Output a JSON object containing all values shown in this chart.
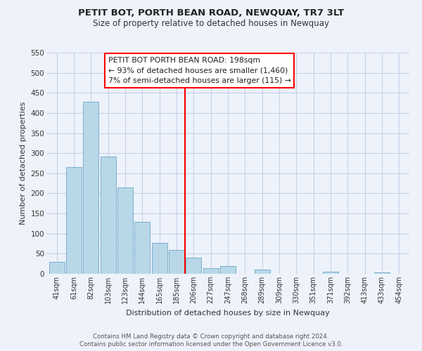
{
  "title": "PETIT BOT, PORTH BEAN ROAD, NEWQUAY, TR7 3LT",
  "subtitle": "Size of property relative to detached houses in Newquay",
  "xlabel": "Distribution of detached houses by size in Newquay",
  "ylabel": "Number of detached properties",
  "bar_labels": [
    "41sqm",
    "61sqm",
    "82sqm",
    "103sqm",
    "123sqm",
    "144sqm",
    "165sqm",
    "185sqm",
    "206sqm",
    "227sqm",
    "247sqm",
    "268sqm",
    "289sqm",
    "309sqm",
    "330sqm",
    "351sqm",
    "371sqm",
    "392sqm",
    "413sqm",
    "433sqm",
    "454sqm"
  ],
  "bar_values": [
    30,
    265,
    428,
    292,
    215,
    130,
    76,
    59,
    40,
    14,
    20,
    0,
    10,
    0,
    0,
    0,
    5,
    0,
    0,
    4,
    0
  ],
  "bar_color": "#b8d8e8",
  "bar_edge_color": "#7ab0cc",
  "vline_x": 7.5,
  "vline_color": "red",
  "annotation_title": "PETIT BOT PORTH BEAN ROAD: 198sqm",
  "annotation_line1": "← 93% of detached houses are smaller (1,460)",
  "annotation_line2": "7% of semi-detached houses are larger (115) →",
  "annotation_box_color": "#ffffff",
  "annotation_box_edge": "red",
  "ylim": [
    0,
    550
  ],
  "yticks": [
    0,
    50,
    100,
    150,
    200,
    250,
    300,
    350,
    400,
    450,
    500,
    550
  ],
  "footer1": "Contains HM Land Registry data © Crown copyright and database right 2024.",
  "footer2": "Contains public sector information licensed under the Open Government Licence v3.0.",
  "bg_color": "#eef2fb",
  "grid_color": "#c8d0e8",
  "title_fontsize": 9.5,
  "subtitle_fontsize": 8.5
}
